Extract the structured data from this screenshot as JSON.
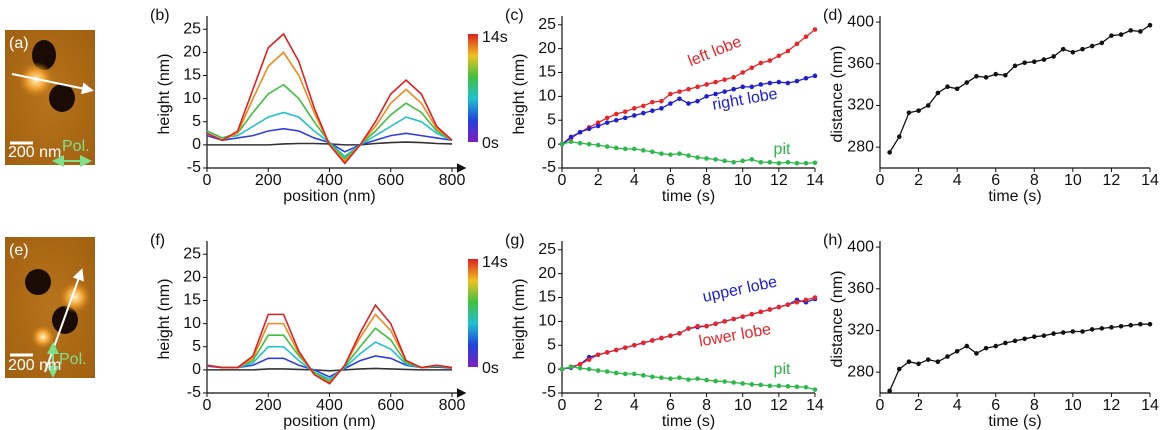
{
  "chart_data": [
    {
      "type": "image",
      "label": "(a)",
      "scale": "200 nm",
      "annotation": "Pol."
    },
    {
      "type": "profile",
      "label": "(b)",
      "xlabel": "position (nm)",
      "ylabel": "height (nm)",
      "x": [
        0,
        50,
        100,
        150,
        200,
        250,
        300,
        350,
        400,
        450,
        500,
        550,
        600,
        650,
        700,
        750,
        800
      ],
      "series": [
        {
          "color": "#e02020",
          "values": [
            2.5,
            1,
            3,
            12,
            21,
            24,
            18,
            8,
            0,
            -4,
            0,
            5,
            11,
            14,
            11,
            4,
            1
          ]
        },
        {
          "color": "#f08a20",
          "values": [
            2.5,
            1,
            2.5,
            10,
            17,
            20,
            15,
            7,
            0,
            -3.5,
            0,
            4,
            9,
            12,
            9,
            3.5,
            1
          ]
        },
        {
          "color": "#40c040",
          "values": [
            3,
            1.5,
            2.5,
            7,
            11,
            13,
            10,
            5,
            0.5,
            -3,
            0,
            3,
            6.5,
            9,
            7,
            3,
            1
          ]
        },
        {
          "color": "#20c0d0",
          "values": [
            3,
            1.5,
            2,
            4,
            6,
            7,
            6,
            3,
            0.5,
            -2.5,
            0,
            2,
            4,
            6,
            5,
            2.5,
            1
          ]
        },
        {
          "color": "#3040e0",
          "values": [
            2,
            1,
            1.5,
            2,
            3,
            3.5,
            3,
            1.5,
            0.5,
            -1.5,
            0,
            1,
            2,
            2.5,
            2,
            1.5,
            1
          ]
        },
        {
          "color": "#333333",
          "values": [
            0,
            0,
            0,
            0,
            0,
            0.2,
            0.3,
            0.3,
            0.2,
            0,
            0,
            0.3,
            0.5,
            0.6,
            0.5,
            0.3,
            0.2
          ]
        }
      ],
      "xlim": [
        0,
        800
      ],
      "xticks": [
        0,
        200,
        400,
        600,
        800
      ],
      "ylim": [
        -5,
        27
      ],
      "yticks": [
        -5,
        0,
        5,
        10,
        15,
        20,
        25
      ],
      "colorbar_labels": [
        "14s",
        "0s"
      ]
    },
    {
      "type": "line",
      "label": "(c)",
      "xlabel": "time (s)",
      "ylabel": "height (nm)",
      "x": [
        0,
        0.5,
        1,
        1.5,
        2,
        2.5,
        3,
        3.5,
        4,
        4.5,
        5,
        5.5,
        6,
        6.5,
        7,
        7.5,
        8,
        8.5,
        9,
        9.5,
        10,
        10.5,
        11,
        11.5,
        12,
        12.5,
        13,
        13.5,
        14
      ],
      "series": [
        {
          "name": "left lobe",
          "color": "#e8262a",
          "values": [
            0,
            1.2,
            2.5,
            3.5,
            4.5,
            5.5,
            6.3,
            6.8,
            7.5,
            8,
            8.8,
            9,
            10.5,
            11,
            11.5,
            12,
            12.5,
            13,
            13.5,
            14,
            15,
            16,
            17,
            17.5,
            18.5,
            19.5,
            21,
            22.5,
            24
          ]
        },
        {
          "name": "right lobe",
          "color": "#2020d0",
          "values": [
            0,
            1.5,
            2.5,
            3.2,
            3.8,
            4.5,
            5,
            5.5,
            6,
            6.5,
            7,
            7.5,
            8.5,
            9.5,
            8.5,
            9,
            10,
            10.5,
            11,
            11.5,
            12,
            12,
            12.5,
            12.8,
            13,
            12.8,
            13.2,
            13.8,
            14.3
          ]
        },
        {
          "name": "pit",
          "color": "#2db84a",
          "values": [
            0,
            0.5,
            0.2,
            0,
            -0.2,
            -0.5,
            -0.8,
            -1,
            -1,
            -1.3,
            -1.6,
            -2,
            -2.2,
            -2,
            -2.4,
            -2.8,
            -3,
            -3.2,
            -3.5,
            -3.8,
            -3.5,
            -3.2,
            -3.8,
            -3.8,
            -4,
            -3.8,
            -4,
            -4,
            -3.9
          ]
        }
      ],
      "xlim": [
        0,
        14
      ],
      "xticks": [
        0,
        2,
        4,
        6,
        8,
        10,
        12,
        14
      ],
      "ylim": [
        -5,
        26
      ],
      "yticks": [
        -5,
        0,
        5,
        10,
        15,
        20,
        25
      ]
    },
    {
      "type": "line",
      "label": "(d)",
      "xlabel": "time (s)",
      "ylabel": "distance (nm)",
      "x": [
        0.5,
        1,
        1.5,
        2,
        2.5,
        3,
        3.5,
        4,
        4.5,
        5,
        5.5,
        6,
        6.5,
        7,
        7.5,
        8,
        8.5,
        9,
        9.5,
        10,
        10.5,
        11,
        11.5,
        12,
        12.5,
        13,
        13.5,
        14
      ],
      "series": [
        {
          "color": "#111111",
          "values": [
            275,
            290,
            313,
            315,
            320,
            332,
            338,
            336,
            342,
            348,
            347,
            350,
            349,
            358,
            361,
            362,
            364,
            367,
            374,
            371,
            374,
            377,
            380,
            387,
            388,
            392,
            391,
            397
          ]
        }
      ],
      "xlim": [
        0,
        14
      ],
      "xticks": [
        0,
        2,
        4,
        6,
        8,
        10,
        12,
        14
      ],
      "ylim": [
        260,
        402
      ],
      "yticks": [
        280,
        320,
        360,
        400
      ]
    },
    {
      "type": "image",
      "label": "(e)",
      "scale": "200 nm",
      "annotation": "Pol."
    },
    {
      "type": "profile",
      "label": "(f)",
      "xlabel": "position (nm)",
      "ylabel": "height (nm)",
      "x": [
        0,
        50,
        100,
        150,
        200,
        250,
        300,
        350,
        400,
        450,
        500,
        550,
        600,
        650,
        700,
        750,
        800
      ],
      "series": [
        {
          "color": "#e02020",
          "values": [
            1,
            0.5,
            0.5,
            3,
            12,
            12,
            4,
            -1,
            -3,
            1,
            8,
            14,
            10,
            2,
            0.5,
            1,
            0.5
          ]
        },
        {
          "color": "#f08a20",
          "values": [
            1,
            0.5,
            0.5,
            2.5,
            10,
            10,
            3.5,
            -1,
            -2.8,
            1,
            7,
            12,
            8.5,
            2,
            0.5,
            1,
            0.5
          ]
        },
        {
          "color": "#40c040",
          "values": [
            1,
            0.5,
            0.5,
            2,
            7.5,
            7.5,
            3,
            -0.5,
            -2.5,
            0.8,
            5,
            9,
            6.5,
            1.5,
            0.5,
            0.8,
            0.5
          ]
        },
        {
          "color": "#20c0d0",
          "values": [
            1,
            0.5,
            0.5,
            1.5,
            5,
            5,
            2,
            -0.5,
            -2,
            0.5,
            3.5,
            6,
            4.5,
            1.2,
            0.5,
            0.8,
            0.5
          ]
        },
        {
          "color": "#3040e0",
          "values": [
            0.8,
            0.5,
            0.5,
            1,
            2.5,
            2.5,
            1,
            0,
            -1.5,
            0.3,
            2,
            3,
            2.5,
            1,
            0.5,
            0.6,
            0.4
          ]
        },
        {
          "color": "#333333",
          "values": [
            0,
            0,
            0,
            0,
            0.2,
            0.2,
            0.1,
            0,
            -0.2,
            0,
            0.2,
            0.3,
            0.2,
            0.1,
            0,
            0,
            0
          ]
        }
      ],
      "xlim": [
        0,
        800
      ],
      "xticks": [
        0,
        200,
        400,
        600,
        800
      ],
      "ylim": [
        -5,
        27
      ],
      "yticks": [
        -5,
        0,
        5,
        10,
        15,
        20,
        25
      ],
      "colorbar_labels": [
        "14s",
        "0s"
      ]
    },
    {
      "type": "line",
      "label": "(g)",
      "xlabel": "time (s)",
      "ylabel": "height (nm)",
      "x": [
        0,
        0.5,
        1,
        1.5,
        2,
        2.5,
        3,
        3.5,
        4,
        4.5,
        5,
        5.5,
        6,
        6.5,
        7,
        7.5,
        8,
        8.5,
        9,
        9.5,
        10,
        10.5,
        11,
        11.5,
        12,
        12.5,
        13,
        13.5,
        14
      ],
      "series": [
        {
          "name": "upper lobe",
          "color": "#2020d0",
          "values": [
            0,
            0.3,
            1,
            2.5,
            3,
            3.5,
            4,
            4.5,
            5,
            5.5,
            6,
            6.5,
            7,
            7.5,
            8.5,
            8.8,
            9,
            9.5,
            10,
            10.5,
            11,
            11.5,
            12,
            12.5,
            13,
            13.5,
            14.5,
            14,
            14.7
          ]
        },
        {
          "name": "lower lobe",
          "color": "#e8262a",
          "values": [
            0,
            0.5,
            1,
            2,
            3,
            3.5,
            4,
            4.5,
            5,
            5.5,
            6,
            6.5,
            7,
            7.5,
            8.5,
            9,
            9,
            9.5,
            10,
            10.5,
            11,
            11.5,
            12,
            12.5,
            13,
            13.5,
            14,
            14.5,
            15
          ]
        },
        {
          "name": "pit",
          "color": "#2db84a",
          "values": [
            0,
            0.5,
            0.2,
            0,
            -0.3,
            -0.5,
            -0.8,
            -1,
            -1,
            -1.3,
            -1.6,
            -1.8,
            -2,
            -1.8,
            -2.2,
            -2,
            -2.3,
            -2.5,
            -2.6,
            -2.8,
            -3,
            -3.2,
            -3.3,
            -3.5,
            -3.5,
            -3.6,
            -3.7,
            -3.8,
            -4.3
          ]
        }
      ],
      "xlim": [
        0,
        14
      ],
      "xticks": [
        0,
        2,
        4,
        6,
        8,
        10,
        12,
        14
      ],
      "ylim": [
        -5,
        26
      ],
      "yticks": [
        -5,
        0,
        5,
        10,
        15,
        20,
        25
      ]
    },
    {
      "type": "line",
      "label": "(h)",
      "xlabel": "time (s)",
      "ylabel": "distance (nm)",
      "x": [
        0.5,
        1,
        1.5,
        2,
        2.5,
        3,
        3.5,
        4,
        4.5,
        5,
        5.5,
        6,
        6.5,
        7,
        7.5,
        8,
        8.5,
        9,
        9.5,
        10,
        10.5,
        11,
        11.5,
        12,
        12.5,
        13,
        13.5,
        14
      ],
      "series": [
        {
          "color": "#111111",
          "values": [
            262,
            283,
            290,
            288,
            292,
            290,
            295,
            300,
            305,
            298,
            303,
            305,
            308,
            310,
            312,
            314,
            315,
            317,
            318,
            319,
            319,
            321,
            322,
            323,
            324,
            325,
            326,
            326
          ]
        }
      ],
      "xlim": [
        0,
        14
      ],
      "xticks": [
        0,
        2,
        4,
        6,
        8,
        10,
        12,
        14
      ],
      "ylim": [
        260,
        402
      ],
      "yticks": [
        280,
        320,
        360,
        400
      ]
    }
  ]
}
